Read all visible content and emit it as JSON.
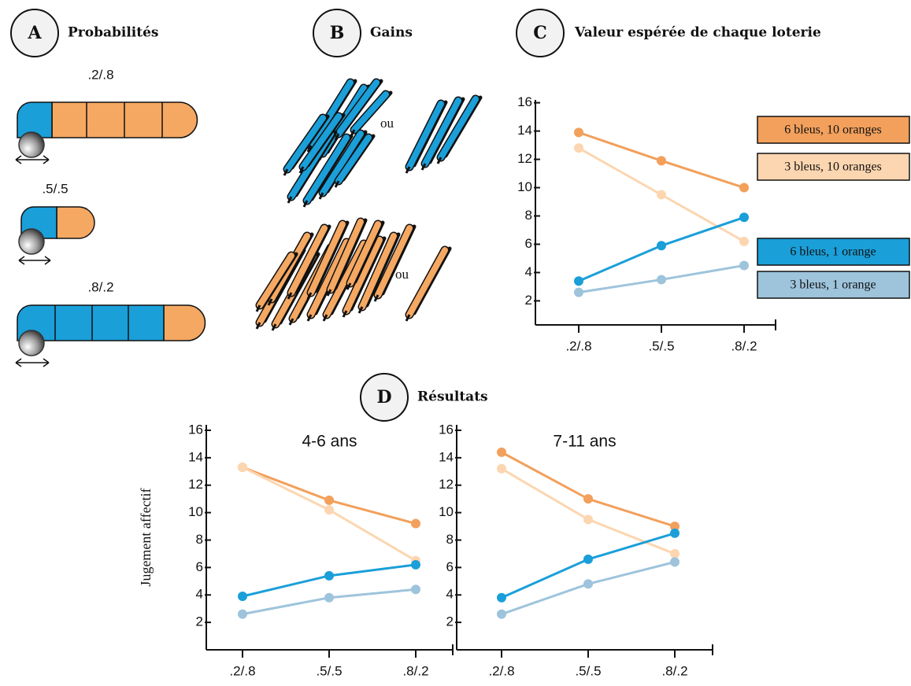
{
  "panels": {
    "a": {
      "letter": "A",
      "title": "Probabilités",
      "bars": [
        ".2/.8",
        ".5/.5",
        ".8/.2"
      ]
    },
    "b": {
      "letter": "B",
      "title": "Gains",
      "or": [
        "ou",
        "ou"
      ]
    },
    "c": {
      "letter": "C"
    },
    "d": {
      "letter": "D",
      "title": "Résultats"
    }
  },
  "chart_data": [
    {
      "type": "line",
      "title": "Valeur espérée de chaque loterie",
      "categories": [
        ".2/.8",
        ".5/.5",
        ".8/.2"
      ],
      "ylim": [
        0.3,
        16.2
      ],
      "yticks": [
        2,
        4,
        6,
        8,
        10,
        12,
        14,
        16
      ],
      "legend": "right",
      "series": [
        {
          "name": "6 bleus, 10 oranges",
          "color": "#f2a05c",
          "values": [
            13.9,
            11.9,
            10.0
          ]
        },
        {
          "name": "3 bleus, 10 oranges",
          "color": "#fcd6b0",
          "values": [
            12.8,
            9.5,
            6.2
          ]
        },
        {
          "name": "6 bleus, 1 orange",
          "color": "#1a9fd9",
          "values": [
            3.4,
            5.9,
            7.9
          ]
        },
        {
          "name": "3 bleus, 1 orange",
          "color": "#9ec4dc",
          "values": [
            2.6,
            3.5,
            4.5
          ]
        }
      ]
    },
    {
      "type": "line",
      "title": "4-6 ans",
      "ylabel": "Jugement affectif",
      "categories": [
        ".2/.8",
        ".5/.5",
        ".8/.2"
      ],
      "ylim": [
        0,
        16.4
      ],
      "yticks": [
        2,
        4,
        6,
        8,
        10,
        12,
        14,
        16
      ],
      "series": [
        {
          "color": "#f2a05c",
          "values": [
            13.3,
            10.9,
            9.2
          ]
        },
        {
          "color": "#fcd6b0",
          "values": [
            13.3,
            10.2,
            6.5
          ]
        },
        {
          "color": "#1a9fd9",
          "values": [
            3.9,
            5.4,
            6.2
          ]
        },
        {
          "color": "#9ec4dc",
          "values": [
            2.6,
            3.8,
            4.4
          ]
        }
      ]
    },
    {
      "type": "line",
      "title": "7-11 ans",
      "categories": [
        ".2/.8",
        ".5/.5",
        ".8/.2"
      ],
      "ylim": [
        0,
        16.4
      ],
      "yticks": [
        2,
        4,
        6,
        8,
        10,
        12,
        14,
        16
      ],
      "series": [
        {
          "color": "#f2a05c",
          "values": [
            14.4,
            11.0,
            9.0
          ]
        },
        {
          "color": "#fcd6b0",
          "values": [
            13.2,
            9.5,
            7.0
          ]
        },
        {
          "color": "#1a9fd9",
          "values": [
            3.8,
            6.6,
            8.5
          ]
        },
        {
          "color": "#9ec4dc",
          "values": [
            2.6,
            4.8,
            6.4
          ]
        }
      ]
    }
  ]
}
